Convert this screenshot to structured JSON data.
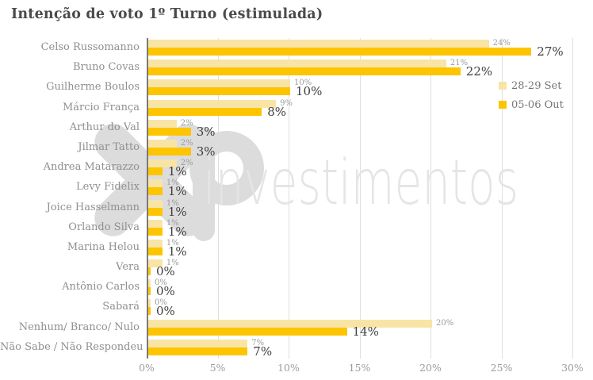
{
  "title": "Intenção de voto 1º Turno (estimulada)",
  "watermark": {
    "logo": "xp-logo",
    "text": "investimentos"
  },
  "legend": [
    {
      "label": "28-29 Set",
      "color": "#f8e5a6"
    },
    {
      "label": "05-06 Out",
      "color": "#fdc400"
    }
  ],
  "chart_data": {
    "type": "bar",
    "orientation": "horizontal",
    "title": "Intenção de voto 1º Turno (estimulada)",
    "categories": [
      "Celso Russomanno",
      "Bruno Covas",
      "Guilherme Boulos",
      "Márcio França",
      "Arthur do Val",
      "Jilmar Tatto",
      "Andrea Matarazzo",
      "Levy Fidelix",
      "Joice Hasselmann",
      "Orlando Silva",
      "Marina Helou",
      "Vera",
      "Antônio Carlos",
      "Sabará",
      "Nenhum/ Branco/ Nulo",
      "Não Sabe / Não Respondeu"
    ],
    "series": [
      {
        "name": "28-29 Set",
        "color": "#f8e5a6",
        "values": [
          24,
          21,
          10,
          9,
          2,
          2,
          2,
          1,
          1,
          1,
          1,
          1,
          0,
          0,
          20,
          7
        ]
      },
      {
        "name": "05-06 Out",
        "color": "#fdc400",
        "values": [
          27,
          22,
          10,
          8,
          3,
          3,
          1,
          1,
          1,
          1,
          1,
          0,
          0,
          0,
          14,
          7
        ]
      }
    ],
    "value_label_format": "{value}%",
    "xlabel": "",
    "ylabel": "",
    "x_ticks": [
      "0%",
      "5%",
      "10%",
      "15%",
      "20%",
      "25%",
      "30%"
    ],
    "xlim": [
      0,
      30
    ],
    "grid": true,
    "legend_position": "right"
  }
}
